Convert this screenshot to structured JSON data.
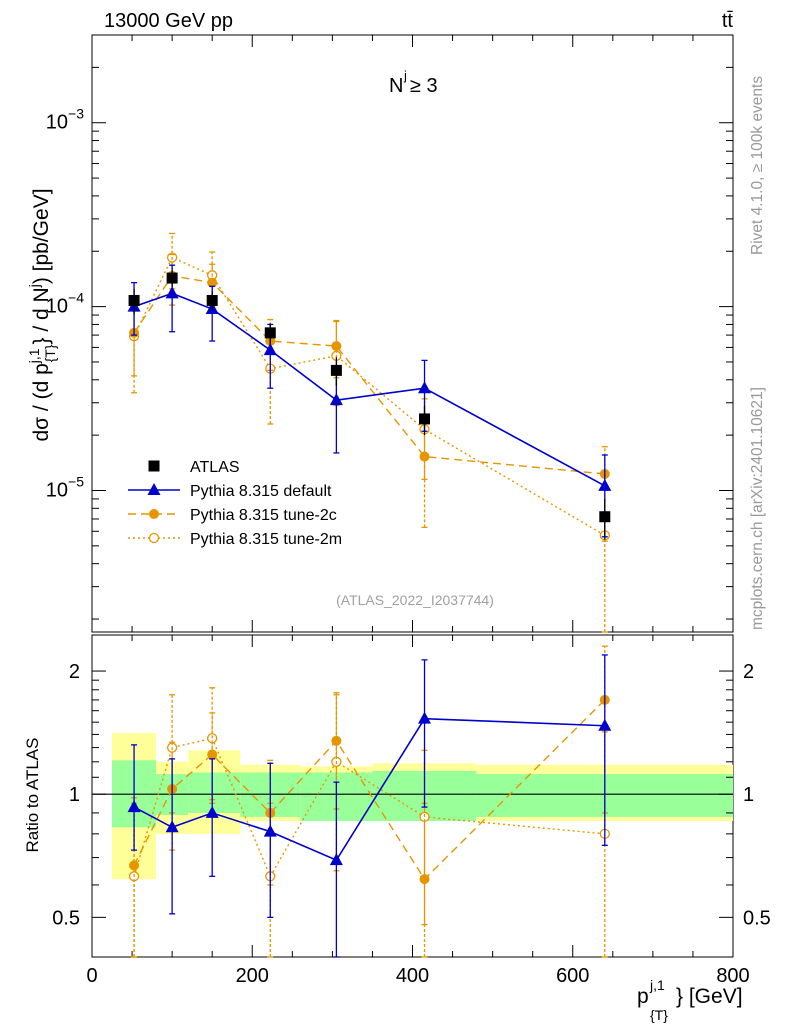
{
  "header": {
    "beam": "13000 GeV pp",
    "process": "tt̄"
  },
  "side_labels": {
    "rivet": "Rivet 4.1.0, ≥ 100k events",
    "mcplots": "mcplots.cern.ch [arXiv:2401.10621]"
  },
  "colors": {
    "atlas": "#000000",
    "default": "#0000cc",
    "tune2c": "#e69500",
    "tune2m": "#e69500",
    "band_inner": "#99ff99",
    "band_outer": "#ffff99"
  },
  "chart_data": [
    {
      "type": "line",
      "panel": "main",
      "annotation": "N^j ≥ 3",
      "analysis_id": "(ATLAS_2022_I2037744)",
      "ylabel": "dσ / (d p_{T}^{j,1} / d N^j) [pb/GeV]",
      "xlabel": "p_{T}^{j,1} [GeV]",
      "yscale": "log",
      "xlim": [
        0,
        800
      ],
      "ylim": [
        1.7e-06,
        0.003
      ],
      "y_tick_labels": [
        "10^-5",
        "10^-4",
        "10^-3"
      ],
      "legend_position": "lower-left",
      "x": [
        52.5,
        100,
        150,
        222.5,
        305,
        415,
        640
      ],
      "series": [
        {
          "name": "ATLAS",
          "key": "atlas",
          "marker": "filled-square",
          "values": [
            0.000108,
            0.000143,
            0.000108,
            7.2e-05,
            4.5e-05,
            2.45e-05,
            7.2e-06
          ],
          "err_lo": [
            1.7e-05,
            1.5e-05,
            1.3e-05,
            9e-06,
            8e-06,
            4.5e-06,
            1.8e-06
          ],
          "err_hi": [
            1.7e-05,
            1.5e-05,
            1.3e-05,
            9e-06,
            8e-06,
            4.5e-06,
            1.8e-06
          ]
        },
        {
          "name": "Pythia 8.315 default",
          "key": "default",
          "marker": "filled-triangle",
          "dash": "solid",
          "values": [
            0.0001,
            0.000118,
            9.7e-05,
            5.8e-05,
            3.1e-05,
            3.6e-05,
            1.06e-05
          ],
          "err_lo": [
            3e-05,
            4.5e-05,
            3.2e-05,
            2.2e-05,
            1.5e-05,
            1.5e-05,
            5e-06
          ],
          "err_hi": [
            3.5e-05,
            5e-05,
            3.2e-05,
            2.2e-05,
            1.4e-05,
            1.5e-05,
            5e-06
          ]
        },
        {
          "name": "Pythia 8.315 tune-2c",
          "key": "tune2c",
          "marker": "filled-circle",
          "dash": "dashed",
          "values": [
            7.2e-05,
            0.000147,
            0.000135,
            6.5e-05,
            6.1e-05,
            1.53e-05,
            1.23e-05
          ],
          "err_lo": [
            3e-05,
            4.5e-05,
            3.5e-05,
            2e-05,
            2e-05,
            9e-06,
            7e-06
          ],
          "err_hi": [
            3.5e-05,
            4.5e-05,
            3.5e-05,
            2e-05,
            2.2e-05,
            9e-06,
            5e-06
          ]
        },
        {
          "name": "Pythia 8.315 tune-2m",
          "key": "tune2m",
          "marker": "open-circle",
          "dash": "dotted",
          "values": [
            6.9e-05,
            0.000185,
            0.000148,
            4.6e-05,
            5.4e-05,
            2.15e-05,
            5.7e-06
          ],
          "err_lo": [
            3.5e-05,
            6e-05,
            4.5e-05,
            2.3e-05,
            2.5e-05,
            1e-05,
            5.5e-06
          ],
          "err_hi": [
            3.5e-05,
            6.5e-05,
            5e-05,
            2e-05,
            3e-05,
            1e-05,
            4.5e-06
          ]
        }
      ]
    },
    {
      "type": "line",
      "panel": "ratio",
      "ylabel": "Ratio to ATLAS",
      "xlabel": "p_{T}^{j,1} [GeV]",
      "yscale": "log",
      "xlim": [
        0,
        800
      ],
      "ylim": [
        0.4,
        2.45
      ],
      "y_tick_labels": [
        "0.5",
        "1",
        "2"
      ],
      "x_tick_labels": [
        "0",
        "200",
        "400",
        "600",
        "800"
      ],
      "reference_bins": {
        "edges": [
          25,
          80,
          120,
          185,
          260,
          350,
          480,
          800
        ],
        "inner_lo": [
          0.83,
          0.89,
          0.9,
          0.88,
          0.86,
          0.86,
          0.88
        ],
        "inner_hi": [
          1.21,
          1.12,
          1.13,
          1.13,
          1.13,
          1.14,
          1.12
        ],
        "outer_lo": [
          0.62,
          0.8,
          0.8,
          0.86,
          0.86,
          0.86,
          0.86
        ],
        "outer_hi": [
          1.41,
          1.2,
          1.28,
          1.18,
          1.17,
          1.19,
          1.18
        ]
      },
      "x": [
        52.5,
        100,
        150,
        222.5,
        305,
        415,
        640
      ],
      "series": [
        {
          "name": "Pythia 8.315 default",
          "key": "default",
          "values": [
            0.93,
            0.83,
            0.9,
            0.81,
            0.69,
            1.53,
            1.47
          ],
          "err_lo": [
            0.2,
            0.32,
            0.27,
            0.31,
            0.33,
            0.6,
            0.72
          ],
          "err_hi": [
            0.39,
            0.39,
            0.32,
            0.38,
            0.38,
            0.6,
            0.72
          ]
        },
        {
          "name": "Pythia 8.315 tune-2c",
          "key": "tune2c",
          "values": [
            0.67,
            1.03,
            1.25,
            0.9,
            1.35,
            0.62,
            1.7
          ],
          "err_lo": [
            0.3,
            0.3,
            0.3,
            0.3,
            0.43,
            0.3,
            0.8
          ],
          "err_hi": [
            0.31,
            0.31,
            0.33,
            0.31,
            0.42,
            0.33,
            0.6
          ]
        },
        {
          "name": "Pythia 8.315 tune-2m",
          "key": "tune2m",
          "values": [
            0.63,
            1.3,
            1.37,
            0.63,
            1.2,
            0.88,
            0.8
          ],
          "err_lo": [
            0.32,
            0.4,
            0.4,
            0.32,
            0.55,
            0.4,
            0.78
          ],
          "err_hi": [
            0.32,
            0.45,
            0.45,
            0.32,
            0.55,
            0.4,
            0.62
          ]
        }
      ]
    }
  ]
}
